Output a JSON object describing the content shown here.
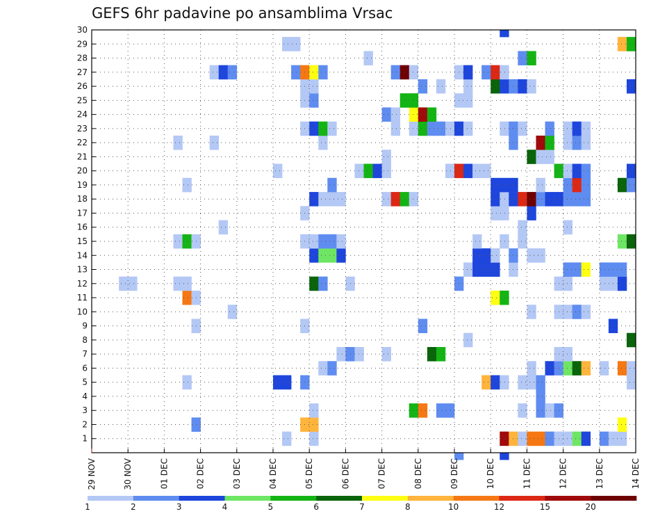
{
  "chart_data": {
    "type": "heatmap",
    "title": "GEFS 6hr padavine po ansamblima Vrsac",
    "xlabel": "",
    "ylabel": "",
    "x_ticks": [
      "29 NOV",
      "30 NOV",
      "01 DEC",
      "02 DEC",
      "03 DEC",
      "04 DEC",
      "05 DEC",
      "06 DEC",
      "07 DEC",
      "08 DEC",
      "09 DEC",
      "10 DEC",
      "11 DEC",
      "12 DEC",
      "13 DEC",
      "14 DEC"
    ],
    "y_ticks": [
      "1",
      "2",
      "3",
      "4",
      "5",
      "6",
      "7",
      "8",
      "9",
      "10",
      "11",
      "12",
      "13",
      "14",
      "15",
      "16",
      "17",
      "18",
      "19",
      "20",
      "21",
      "22",
      "23",
      "24",
      "25",
      "26",
      "27",
      "28",
      "29",
      "30"
    ],
    "x_range_days": [
      0,
      15
    ],
    "y_range": [
      0,
      30
    ],
    "grid": true,
    "legend": "bottom-colorbar",
    "colorbar": {
      "labels": [
        "1",
        "2",
        "3",
        "4",
        "5",
        "6",
        "7",
        "8",
        "10",
        "12",
        "15",
        "20"
      ],
      "colors": [
        "#b4c8f5",
        "#5f8cf0",
        "#1e46dc",
        "#6ee664",
        "#14b414",
        "#0a640a",
        "#ffff14",
        "#ffb43c",
        "#f57814",
        "#dc2814",
        "#a00a0a",
        "#6e0000"
      ]
    },
    "series": [
      {
        "member": 1,
        "cells": [
          [
            5.5,
            1
          ],
          [
            6.25,
            1
          ],
          [
            11.5,
            11
          ],
          [
            11.75,
            8
          ],
          [
            12,
            1
          ],
          [
            12.25,
            9
          ],
          [
            12.5,
            9
          ],
          [
            12.75,
            2
          ],
          [
            13,
            1
          ],
          [
            13.25,
            1
          ],
          [
            13.5,
            4
          ],
          [
            13.75,
            3
          ],
          [
            14.25,
            2
          ],
          [
            14.5,
            1
          ],
          [
            14.75,
            1
          ]
        ]
      },
      {
        "member": 2,
        "cells": [
          [
            3,
            2
          ],
          [
            6,
            8
          ],
          [
            6.25,
            8
          ],
          [
            14.75,
            7
          ]
        ]
      },
      {
        "member": 3,
        "cells": [
          [
            6.25,
            1
          ],
          [
            9,
            5
          ],
          [
            9.25,
            9
          ],
          [
            9.75,
            2
          ],
          [
            10,
            2
          ],
          [
            12,
            1
          ],
          [
            12.5,
            2
          ],
          [
            12.75,
            1
          ],
          [
            13,
            2
          ]
        ]
      },
      {
        "member": 4,
        "cells": [
          [
            12.5,
            2
          ]
        ]
      },
      {
        "member": 5,
        "cells": [
          [
            2.75,
            1
          ],
          [
            5.25,
            3
          ],
          [
            5.5,
            3
          ],
          [
            6,
            2
          ],
          [
            11,
            8
          ],
          [
            11.25,
            3
          ],
          [
            11.5,
            1
          ],
          [
            12,
            1
          ],
          [
            12.25,
            1
          ],
          [
            12.5,
            2
          ],
          [
            15,
            1
          ]
        ]
      },
      {
        "member": 6,
        "cells": [
          [
            6.5,
            1
          ],
          [
            6.75,
            2
          ],
          [
            12.25,
            1
          ],
          [
            12.75,
            3
          ],
          [
            13,
            2
          ],
          [
            13.25,
            4
          ],
          [
            13.5,
            6
          ],
          [
            13.75,
            8
          ],
          [
            14.25,
            1
          ],
          [
            14.75,
            9
          ],
          [
            15,
            1
          ]
        ]
      },
      {
        "member": 7,
        "cells": [
          [
            7,
            1
          ],
          [
            7.25,
            2
          ],
          [
            7.5,
            1
          ],
          [
            8.25,
            1
          ],
          [
            9.5,
            6
          ],
          [
            9.75,
            5
          ],
          [
            13,
            1
          ],
          [
            13.25,
            1
          ]
        ]
      },
      {
        "member": 8,
        "cells": [
          [
            10.5,
            1
          ],
          [
            15,
            6
          ]
        ]
      },
      {
        "member": 9,
        "cells": [
          [
            3,
            1
          ],
          [
            6,
            1
          ],
          [
            9.25,
            2
          ],
          [
            14.5,
            3
          ]
        ]
      },
      {
        "member": 10,
        "cells": [
          [
            4,
            1
          ],
          [
            12.25,
            1
          ],
          [
            13,
            1
          ],
          [
            13.25,
            1
          ],
          [
            13.5,
            2
          ],
          [
            13.75,
            1
          ]
        ]
      },
      {
        "member": 11,
        "cells": [
          [
            2.75,
            9
          ],
          [
            3,
            1
          ],
          [
            11.25,
            7
          ],
          [
            11.5,
            5
          ]
        ]
      },
      {
        "member": 12,
        "cells": [
          [
            1,
            1
          ],
          [
            1.25,
            1
          ],
          [
            2.5,
            1
          ],
          [
            2.75,
            1
          ],
          [
            6.25,
            6
          ],
          [
            6.5,
            2
          ],
          [
            7.25,
            1
          ],
          [
            10.25,
            2
          ],
          [
            13,
            1
          ],
          [
            13.25,
            1
          ],
          [
            14.25,
            1
          ],
          [
            14.5,
            1
          ],
          [
            14.75,
            3
          ]
        ]
      },
      {
        "member": 13,
        "cells": [
          [
            10.5,
            1
          ],
          [
            10.75,
            3
          ],
          [
            11,
            3
          ],
          [
            11.25,
            3
          ],
          [
            11.75,
            1
          ],
          [
            13.25,
            2
          ],
          [
            13.5,
            2
          ],
          [
            13.75,
            7
          ],
          [
            14.25,
            2
          ],
          [
            14.5,
            2
          ],
          [
            14.75,
            2
          ]
        ]
      },
      {
        "member": 14,
        "cells": [
          [
            6.25,
            3
          ],
          [
            6.5,
            4
          ],
          [
            6.75,
            4
          ],
          [
            7,
            3
          ],
          [
            10.75,
            3
          ],
          [
            11,
            3
          ],
          [
            11.25,
            1
          ],
          [
            11.75,
            2
          ],
          [
            12.25,
            1
          ],
          [
            12.5,
            1
          ]
        ]
      },
      {
        "member": 15,
        "cells": [
          [
            2.5,
            1
          ],
          [
            2.75,
            5
          ],
          [
            3,
            1
          ],
          [
            6,
            1
          ],
          [
            6.25,
            1
          ],
          [
            6.5,
            2
          ],
          [
            6.75,
            2
          ],
          [
            7,
            1
          ],
          [
            10.75,
            1
          ],
          [
            11.5,
            1
          ],
          [
            12,
            1
          ],
          [
            14.75,
            4
          ],
          [
            15,
            6
          ]
        ]
      },
      {
        "member": 16,
        "cells": [
          [
            3.75,
            1
          ],
          [
            12,
            1
          ],
          [
            13.25,
            1
          ]
        ]
      },
      {
        "member": 17,
        "cells": [
          [
            6,
            1
          ],
          [
            11.25,
            1
          ],
          [
            11.5,
            1
          ],
          [
            12.25,
            3
          ]
        ]
      },
      {
        "member": 18,
        "cells": [
          [
            6.25,
            3
          ],
          [
            6.5,
            1
          ],
          [
            6.75,
            1
          ],
          [
            7,
            1
          ],
          [
            8.25,
            1
          ],
          [
            8.5,
            10
          ],
          [
            8.75,
            5
          ],
          [
            9,
            1
          ],
          [
            11.25,
            3
          ],
          [
            11.5,
            1
          ],
          [
            11.75,
            3
          ],
          [
            12,
            10
          ],
          [
            12.25,
            12
          ],
          [
            12.5,
            2
          ],
          [
            12.75,
            3
          ],
          [
            13,
            3
          ],
          [
            13.25,
            2
          ],
          [
            13.5,
            2
          ],
          [
            13.75,
            2
          ]
        ]
      },
      {
        "member": 19,
        "cells": [
          [
            2.75,
            1
          ],
          [
            6.75,
            2
          ],
          [
            11.25,
            3
          ],
          [
            11.5,
            3
          ],
          [
            11.75,
            3
          ],
          [
            12.5,
            1
          ],
          [
            13.25,
            2
          ],
          [
            13.5,
            10
          ],
          [
            13.75,
            2
          ],
          [
            14.75,
            6
          ],
          [
            15,
            2
          ]
        ]
      },
      {
        "member": 20,
        "cells": [
          [
            5.25,
            1
          ],
          [
            7.5,
            1
          ],
          [
            7.75,
            5
          ],
          [
            8,
            3
          ],
          [
            8.25,
            1
          ],
          [
            10,
            1
          ],
          [
            10.25,
            10
          ],
          [
            10.5,
            3
          ],
          [
            10.75,
            1
          ],
          [
            11,
            1
          ],
          [
            13,
            5
          ],
          [
            13.25,
            1
          ],
          [
            13.5,
            3
          ],
          [
            13.75,
            2
          ],
          [
            15,
            3
          ]
        ]
      },
      {
        "member": 21,
        "cells": [
          [
            8.25,
            1
          ],
          [
            12.25,
            6
          ],
          [
            12.5,
            1
          ],
          [
            12.75,
            1
          ]
        ]
      },
      {
        "member": 22,
        "cells": [
          [
            2.5,
            1
          ],
          [
            3.5,
            1
          ],
          [
            6.5,
            1
          ],
          [
            11.75,
            2
          ],
          [
            12.5,
            11
          ],
          [
            12.75,
            5
          ],
          [
            13.25,
            1
          ],
          [
            13.5,
            2
          ],
          [
            13.75,
            1
          ]
        ]
      },
      {
        "member": 23,
        "cells": [
          [
            6,
            1
          ],
          [
            6.25,
            3
          ],
          [
            6.5,
            5
          ],
          [
            6.75,
            1
          ],
          [
            8.5,
            1
          ],
          [
            9,
            1
          ],
          [
            9.25,
            5
          ],
          [
            9.5,
            2
          ],
          [
            9.75,
            2
          ],
          [
            10,
            1
          ],
          [
            10.25,
            3
          ],
          [
            10.5,
            1
          ],
          [
            11.5,
            1
          ],
          [
            11.75,
            2
          ],
          [
            12,
            1
          ],
          [
            12.75,
            2
          ],
          [
            13.25,
            1
          ],
          [
            13.5,
            3
          ],
          [
            13.75,
            1
          ]
        ]
      },
      {
        "member": 24,
        "cells": [
          [
            8.25,
            2
          ],
          [
            8.5,
            1
          ],
          [
            9,
            7
          ],
          [
            9.25,
            11
          ],
          [
            9.5,
            5
          ]
        ]
      },
      {
        "member": 25,
        "cells": [
          [
            6,
            1
          ],
          [
            6.25,
            2
          ],
          [
            8.75,
            5
          ],
          [
            9,
            5
          ],
          [
            10.25,
            1
          ],
          [
            10.5,
            1
          ]
        ]
      },
      {
        "member": 26,
        "cells": [
          [
            6,
            1
          ],
          [
            6.25,
            1
          ],
          [
            9.25,
            2
          ],
          [
            9.75,
            1
          ],
          [
            10.5,
            1
          ],
          [
            11.25,
            6
          ],
          [
            11.5,
            3
          ],
          [
            11.75,
            2
          ],
          [
            12,
            3
          ],
          [
            12.25,
            1
          ],
          [
            15,
            3
          ]
        ]
      },
      {
        "member": 27,
        "cells": [
          [
            3.5,
            1
          ],
          [
            3.75,
            3
          ],
          [
            4,
            2
          ],
          [
            5.75,
            2
          ],
          [
            6,
            9
          ],
          [
            6.25,
            7
          ],
          [
            6.5,
            2
          ],
          [
            8.5,
            2
          ],
          [
            8.75,
            12
          ],
          [
            9,
            1
          ],
          [
            10.25,
            1
          ],
          [
            10.5,
            3
          ],
          [
            11,
            2
          ],
          [
            11.25,
            10
          ],
          [
            11.5,
            1
          ]
        ]
      },
      {
        "member": 28,
        "cells": [
          [
            7.75,
            1
          ],
          [
            12,
            2
          ],
          [
            12.25,
            5
          ]
        ]
      },
      {
        "member": 29,
        "cells": [
          [
            5.5,
            1
          ],
          [
            5.75,
            1
          ],
          [
            14.75,
            8
          ],
          [
            15,
            5
          ]
        ]
      },
      {
        "member": 30,
        "cells": [
          [
            11.5,
            3
          ]
        ]
      },
      {
        "member": 0,
        "cells": [
          [
            10.25,
            2
          ],
          [
            11.5,
            3
          ]
        ]
      }
    ]
  }
}
